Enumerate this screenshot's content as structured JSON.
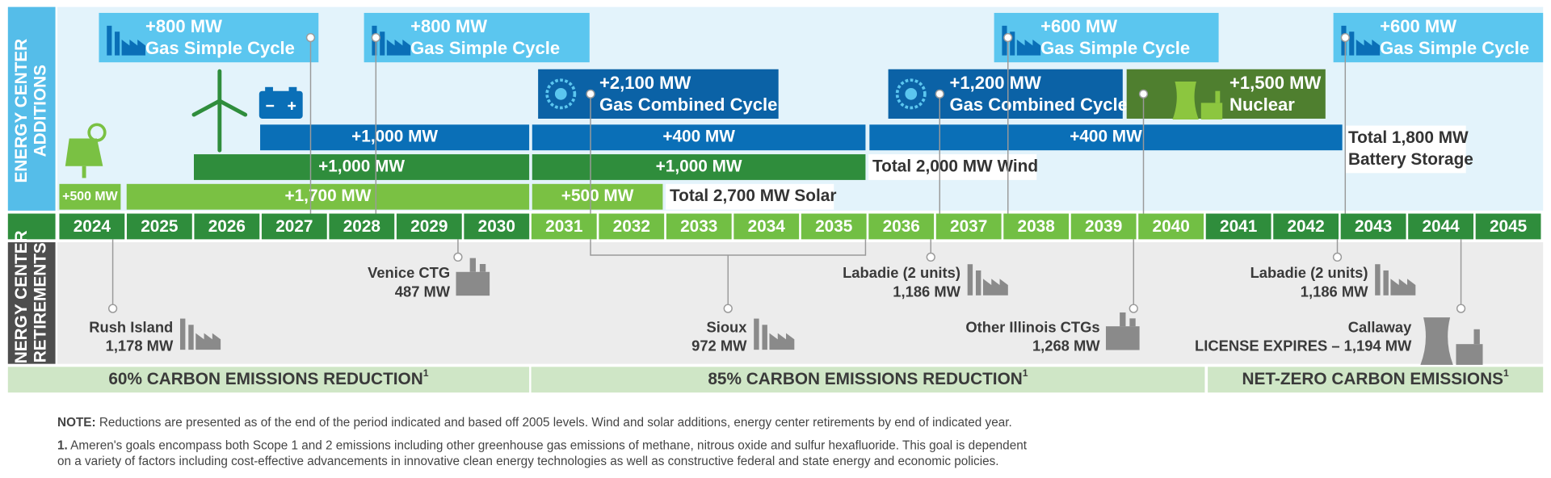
{
  "side_labels": {
    "additions": [
      "ENERGY CENTER",
      "ADDITIONS"
    ],
    "retirements": [
      "ENERGY CENTER",
      "RETIREMENTS"
    ]
  },
  "years": [
    "2024",
    "2025",
    "2026",
    "2027",
    "2028",
    "2029",
    "2030",
    "2031",
    "2032",
    "2033",
    "2034",
    "2035",
    "2036",
    "2037",
    "2038",
    "2039",
    "2040",
    "2041",
    "2042",
    "2043",
    "2044",
    "2045"
  ],
  "additions": [
    {
      "mw": "+800 MW",
      "name": "Gas Simple Cycle"
    },
    {
      "mw": "+800 MW",
      "name": "Gas Simple Cycle"
    },
    {
      "mw": "+600 MW",
      "name": "Gas Simple Cycle"
    },
    {
      "mw": "+600 MW",
      "name": "Gas Simple Cycle"
    },
    {
      "mw": "+2,100 MW",
      "name": "Gas Combined Cycle"
    },
    {
      "mw": "+1,200 MW",
      "name": "Gas Combined Cycle"
    },
    {
      "mw": "+1,500 MW",
      "name": "Nuclear"
    }
  ],
  "bars": {
    "battery": [
      "+1,000 MW",
      "+400 MW",
      "+400 MW"
    ],
    "wind": [
      "+1,000 MW",
      "+1,000 MW"
    ],
    "solar": [
      "+500 MW",
      "+1,700 MW",
      "+500 MW"
    ]
  },
  "totals": {
    "battery": [
      "Total 1,800 MW",
      "Battery Storage"
    ],
    "wind": "Total 2,000 MW Wind",
    "solar": "Total 2,700 MW Solar"
  },
  "retirements": [
    [
      "Rush Island",
      "1,178 MW"
    ],
    [
      "Venice CTG",
      "487 MW"
    ],
    [
      "Sioux",
      "972 MW"
    ],
    [
      "Labadie (2 units)",
      "1,186 MW"
    ],
    [
      "Other Illinois CTGs",
      "1,268 MW"
    ],
    [
      "Labadie (2 units)",
      "1,186 MW"
    ],
    [
      "Callaway",
      "LICENSE EXPIRES – 1,194 MW"
    ]
  ],
  "goals": [
    {
      "text": "60% CARBON EMISSIONS REDUCTION",
      "sup": "1"
    },
    {
      "text": "85% CARBON EMISSIONS REDUCTION",
      "sup": "1"
    },
    {
      "text": "NET-ZERO CARBON EMISSIONS",
      "sup": "1"
    }
  ],
  "note": {
    "label": "NOTE:",
    "text": " Reductions are presented as of the end of the period indicated and based off 2005 levels. Wind and solar additions, energy center retirements by end of indicated year."
  },
  "footnote": {
    "label": "1.",
    "lines": [
      " Ameren's goals encompass both Scope 1 and 2 emissions including other greenhouse gas emissions of methane, nitrous oxide and sulfur hexafluoride. This goal is dependent",
      "on a variety of factors including cost-effective advancements in innovative clean energy technologies as well as constructive federal and state energy and economic policies."
    ]
  }
}
